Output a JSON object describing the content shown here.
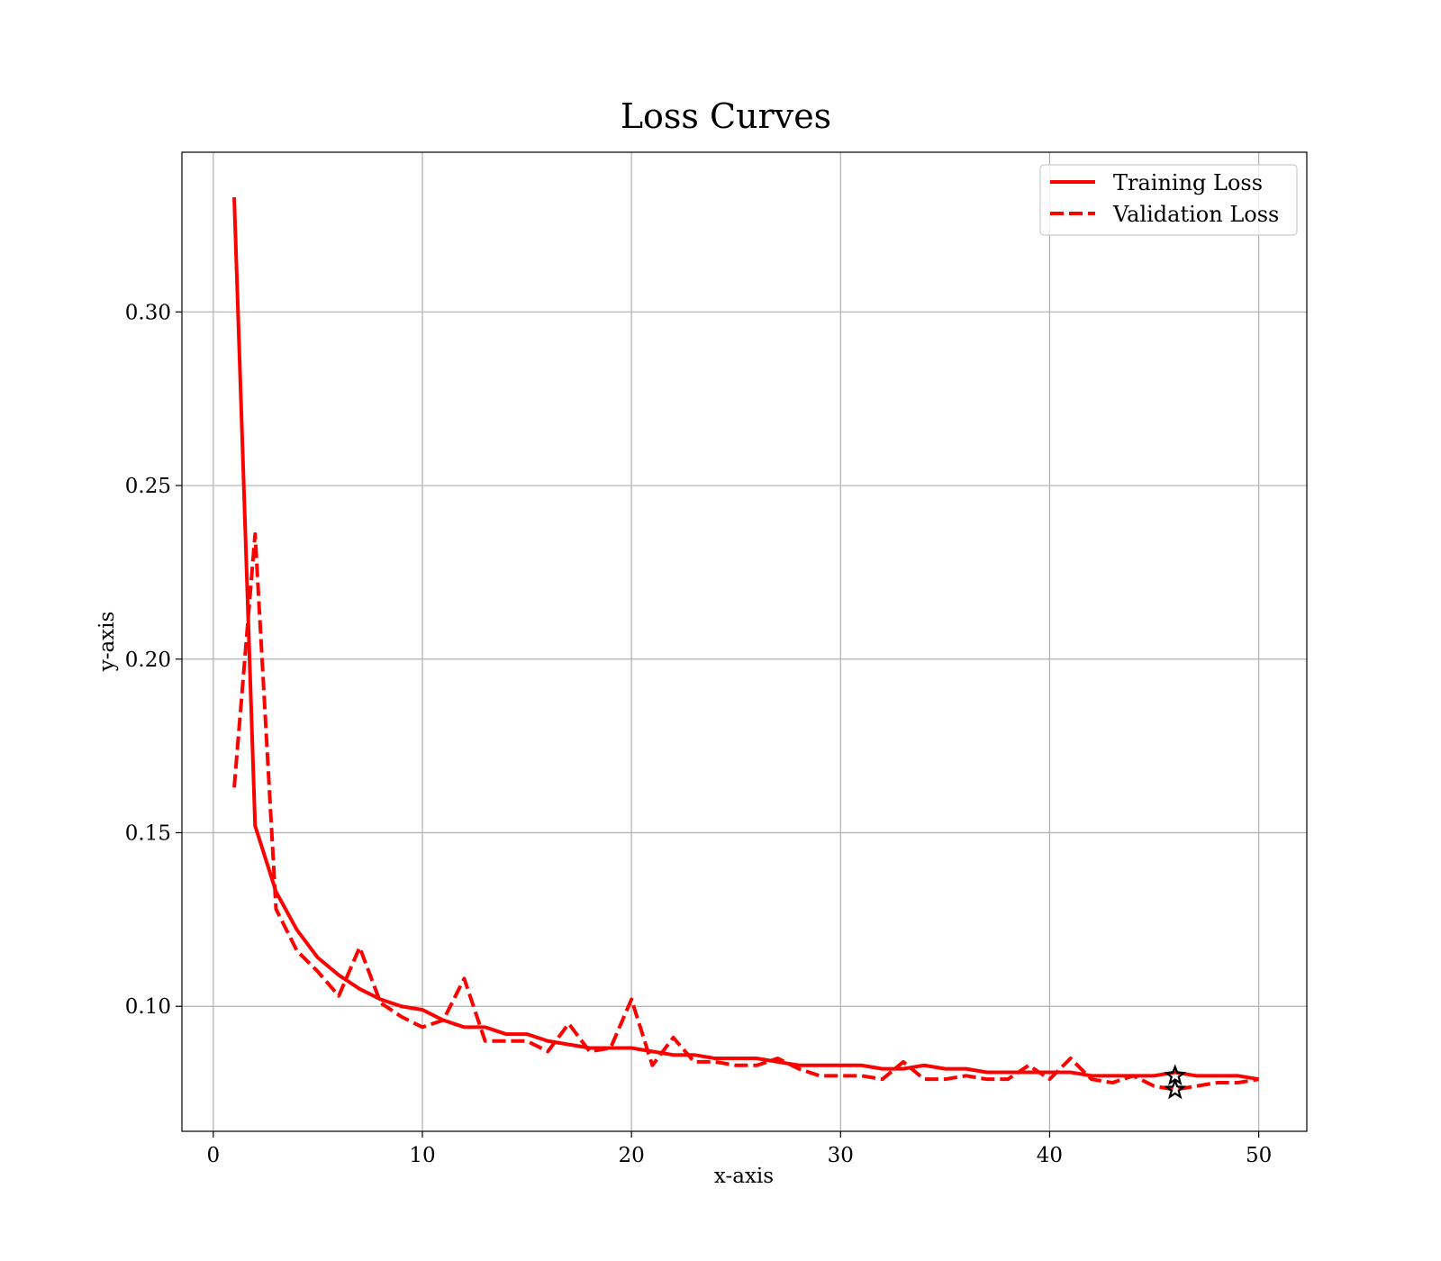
{
  "chart_data": {
    "type": "line",
    "title": "Loss Curves",
    "xlabel": "x-axis",
    "ylabel": "y-axis",
    "xlim": [
      -1.5,
      52.3
    ],
    "ylim": [
      0.064,
      0.346
    ],
    "xticks": [
      0,
      10,
      20,
      30,
      40,
      50
    ],
    "yticks": [
      0.1,
      0.15,
      0.2,
      0.25,
      0.3
    ],
    "xtick_labels": [
      "0",
      "10",
      "20",
      "30",
      "40",
      "50"
    ],
    "ytick_labels": [
      "0.10",
      "0.15",
      "0.20",
      "0.25",
      "0.30"
    ],
    "grid": true,
    "legend_position": "top-right",
    "x": [
      1,
      2,
      3,
      4,
      5,
      6,
      7,
      8,
      9,
      10,
      11,
      12,
      13,
      14,
      15,
      16,
      17,
      18,
      19,
      20,
      21,
      22,
      23,
      24,
      25,
      26,
      27,
      28,
      29,
      30,
      31,
      32,
      33,
      34,
      35,
      36,
      37,
      38,
      39,
      40,
      41,
      42,
      43,
      44,
      45,
      46,
      47,
      48,
      49,
      50
    ],
    "series": [
      {
        "name": "Training Loss",
        "color": "#ff0000",
        "style": "solid",
        "values": [
          0.333,
          0.152,
          0.133,
          0.122,
          0.114,
          0.109,
          0.105,
          0.102,
          0.1,
          0.099,
          0.096,
          0.094,
          0.094,
          0.092,
          0.092,
          0.09,
          0.089,
          0.088,
          0.088,
          0.088,
          0.087,
          0.086,
          0.086,
          0.085,
          0.085,
          0.085,
          0.084,
          0.083,
          0.083,
          0.083,
          0.083,
          0.082,
          0.082,
          0.083,
          0.082,
          0.082,
          0.081,
          0.081,
          0.081,
          0.081,
          0.081,
          0.08,
          0.08,
          0.08,
          0.08,
          0.081,
          0.08,
          0.08,
          0.08,
          0.079
        ]
      },
      {
        "name": "Validation Loss",
        "color": "#ff0000",
        "style": "dashed",
        "values": [
          0.163,
          0.236,
          0.128,
          0.116,
          0.11,
          0.103,
          0.117,
          0.101,
          0.097,
          0.094,
          0.096,
          0.108,
          0.09,
          0.09,
          0.09,
          0.087,
          0.095,
          0.087,
          0.088,
          0.102,
          0.083,
          0.091,
          0.084,
          0.084,
          0.083,
          0.083,
          0.085,
          0.082,
          0.08,
          0.08,
          0.08,
          0.079,
          0.084,
          0.079,
          0.079,
          0.08,
          0.079,
          0.079,
          0.083,
          0.079,
          0.085,
          0.079,
          0.078,
          0.08,
          0.077,
          0.076,
          0.077,
          0.078,
          0.078,
          0.079
        ]
      }
    ],
    "markers": [
      {
        "x": 46,
        "y": 0.08,
        "symbol": "star",
        "color": "#000000"
      },
      {
        "x": 46,
        "y": 0.076,
        "symbol": "star",
        "color": "#000000"
      }
    ]
  }
}
